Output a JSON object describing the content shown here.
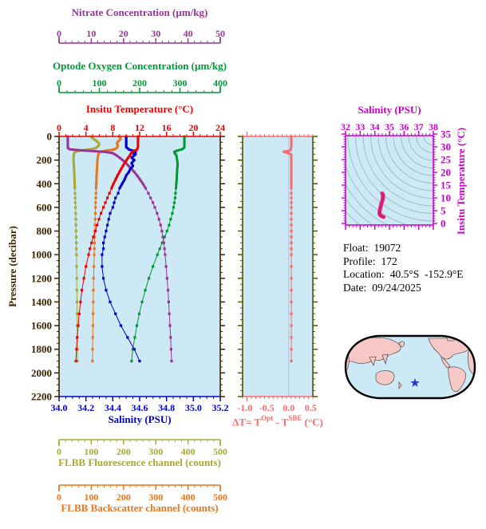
{
  "info_panel": {
    "lines": [
      {
        "label": "Float:",
        "value": "19072"
      },
      {
        "label": "Profile:",
        "value": "172"
      },
      {
        "label": "Location:",
        "value": "40.5°S  -152.9°E"
      },
      {
        "label": "Date:",
        "value": "09/24/2025"
      }
    ]
  },
  "delta_t_title": {
    "p1": "ΔT= T",
    "sup1": "Opt",
    "p2": " - T",
    "sup2": "SBE",
    "p3": " (°C)"
  },
  "map": {
    "type": "world-map-pacific-centered",
    "ocean_color": "#CDE9F5",
    "land_color": "#F6C8C6",
    "outline_color": "#000000",
    "marker": {
      "symbol": "star",
      "color": "#2233CC",
      "meaning": "float location"
    }
  },
  "chart_data": [
    {
      "id": "profile-plot",
      "type": "line",
      "plot_bg": "#CDE9F5",
      "y_axis": {
        "label": "Pressure (decibar)",
        "range": [
          0,
          2200
        ],
        "tick_step": 200,
        "minor_step": 50,
        "ticks": [
          0,
          200,
          400,
          600,
          800,
          1000,
          1200,
          1400,
          1600,
          1800,
          2000,
          2200
        ],
        "tick_labels": [
          "0",
          "200",
          "400",
          "600",
          "800",
          "1000",
          "1200",
          "1400",
          "1600",
          "1800",
          "2000",
          "2200"
        ],
        "color": "#3A2300"
      },
      "x_axes": [
        {
          "id": "nitrate",
          "title": "Nitrate Concentration (µm/kg)",
          "range": [
            0,
            50
          ],
          "ticks": [
            0,
            10,
            20,
            30,
            40,
            50
          ],
          "tick_labels": [
            "0",
            "10",
            "20",
            "30",
            "40",
            "50"
          ],
          "minor_step": 2,
          "color": "#993399"
        },
        {
          "id": "oxygen",
          "title": "Optode Oxygen Concentration (µm/kg)",
          "range": [
            0,
            400
          ],
          "ticks": [
            0,
            100,
            200,
            300,
            400
          ],
          "tick_labels": [
            "0",
            "100",
            "200",
            "300",
            "400"
          ],
          "minor_step": 20,
          "color": "#009933"
        },
        {
          "id": "temperature",
          "title": "Insitu Temperature (°C)",
          "range": [
            0,
            24
          ],
          "ticks": [
            0,
            4,
            8,
            12,
            16,
            20,
            24
          ],
          "tick_labels": [
            "0",
            "4",
            "8",
            "12",
            "16",
            "20",
            "24"
          ],
          "minor_step": 1,
          "color": "#EE0000"
        },
        {
          "id": "salinity",
          "title": "Salinity (PSU)",
          "range": [
            34.0,
            35.2
          ],
          "ticks": [
            34.0,
            34.2,
            34.4,
            34.6,
            34.8,
            35.0,
            35.2
          ],
          "tick_labels": [
            "34.0",
            "34.2",
            "34.4",
            "34.6",
            "34.8",
            "35.0",
            "35.2"
          ],
          "minor_step": 0.05,
          "color": "#0000CC"
        },
        {
          "id": "fluorescence",
          "title": "FLBB Fluorescence channel (counts)",
          "range": [
            0,
            500
          ],
          "ticks": [
            0,
            100,
            200,
            300,
            400,
            500
          ],
          "tick_labels": [
            "0",
            "100",
            "200",
            "300",
            "400",
            "500"
          ],
          "minor_step": 20,
          "color": "#A8A832"
        },
        {
          "id": "backscatter",
          "title": "FLBB Backscatter channel (counts)",
          "range": [
            0,
            500
          ],
          "ticks": [
            0,
            100,
            200,
            300,
            400,
            500
          ],
          "tick_labels": [
            "0",
            "100",
            "200",
            "300",
            "400",
            "500"
          ],
          "minor_step": 20,
          "color": "#E8761E"
        }
      ],
      "pressure_db": [
        0,
        10,
        20,
        30,
        40,
        50,
        60,
        70,
        80,
        90,
        100,
        110,
        120,
        130,
        140,
        150,
        160,
        180,
        200,
        225,
        250,
        275,
        300,
        330,
        360,
        400,
        440,
        480,
        520,
        560,
        600,
        650,
        700,
        750,
        800,
        850,
        900,
        950,
        1000,
        1100,
        1200,
        1300,
        1400,
        1500,
        1600,
        1700,
        1800,
        1900
      ],
      "series": [
        {
          "id": "fluorescence",
          "name": "FLBB Fluorescence channel (counts)",
          "axis": "fluorescence",
          "color": "#A8A832",
          "values": [
            99,
            102,
            107,
            112,
            117,
            121,
            124,
            124,
            122,
            118,
            112,
            95,
            65,
            50,
            47,
            46,
            45.5,
            45,
            45,
            45.5,
            46,
            46.5,
            47,
            47.5,
            48,
            48.5,
            49,
            49.5,
            50,
            50.5,
            51,
            51.5,
            52,
            52.3,
            52.6,
            53,
            53.3,
            53.6,
            54,
            54.5,
            55,
            55.3,
            55.6,
            56,
            56.2,
            56.5,
            56.8,
            57
          ]
        },
        {
          "id": "backscatter",
          "name": "FLBB Backscatter channel (counts)",
          "axis": "backscatter",
          "color": "#E8761E",
          "values": [
            186,
            189,
            191,
            188,
            184,
            181,
            180,
            181,
            182,
            181,
            179,
            170,
            145,
            128,
            124,
            122,
            121,
            120,
            119,
            118.5,
            118,
            117.5,
            117,
            116.5,
            116,
            115.5,
            115,
            114.5,
            114,
            113.5,
            113,
            112.5,
            112,
            111.5,
            111,
            110.5,
            110,
            109.5,
            109,
            108,
            107,
            106.5,
            106,
            105.5,
            105,
            104.5,
            104,
            103.5
          ]
        },
        {
          "id": "oxygen",
          "name": "Optode Oxygen Concentration (µm/kg)",
          "axis": "oxygen",
          "color": "#009933",
          "values": [
            311,
            311,
            311,
            311,
            311,
            311,
            311,
            311,
            311,
            311,
            309,
            304,
            293,
            286,
            287,
            289,
            291,
            292,
            293,
            294,
            294,
            293,
            293,
            292,
            292,
            291,
            290,
            289,
            288,
            286,
            284,
            281,
            277,
            273,
            268,
            262,
            256,
            250,
            244,
            233,
            223,
            214,
            206,
            199,
            193,
            188,
            183,
            180
          ]
        },
        {
          "id": "nitrate",
          "name": "Nitrate Concentration (µm/kg)",
          "axis": "nitrate",
          "color": "#993399",
          "values": [
            2.7,
            2.7,
            2.7,
            2.7,
            2.7,
            2.7,
            2.7,
            2.7,
            2.7,
            2.7,
            2.8,
            3.5,
            8.0,
            14.0,
            16.5,
            17.2,
            17.8,
            18.8,
            19.7,
            20.7,
            21.6,
            22.5,
            23.3,
            24.2,
            25.0,
            26.0,
            26.9,
            27.7,
            28.4,
            29.1,
            29.7,
            30.4,
            31.0,
            31.5,
            31.9,
            32.2,
            32.5,
            32.7,
            32.9,
            33.2,
            33.5,
            33.8,
            34.0,
            34.2,
            34.4,
            34.6,
            34.75,
            34.9
          ]
        },
        {
          "id": "salinity",
          "name": "Salinity (PSU)",
          "axis": "salinity",
          "color": "#0000CC",
          "values": [
            34.5,
            34.5,
            34.5,
            34.5,
            34.5,
            34.5,
            34.5,
            34.5,
            34.5,
            34.5,
            34.51,
            34.52,
            34.55,
            34.57,
            34.55,
            34.57,
            34.56,
            34.54,
            34.56,
            34.54,
            34.55,
            34.53,
            34.52,
            34.5,
            34.49,
            34.47,
            34.45,
            34.44,
            34.42,
            34.41,
            34.4,
            34.38,
            34.37,
            34.36,
            34.35,
            34.34,
            34.33,
            34.33,
            34.32,
            34.32,
            34.33,
            34.35,
            34.38,
            34.42,
            34.46,
            34.51,
            34.56,
            34.6
          ]
        },
        {
          "id": "temperature",
          "name": "Insitu Temperature (°C)",
          "axis": "temperature",
          "color": "#EE0000",
          "values": [
            11.75,
            11.75,
            11.75,
            11.75,
            11.75,
            11.75,
            11.75,
            11.75,
            11.75,
            11.75,
            11.7,
            11.6,
            11.3,
            10.9,
            10.75,
            10.65,
            10.55,
            10.3,
            10.05,
            9.75,
            9.5,
            9.25,
            9.0,
            8.7,
            8.45,
            8.1,
            7.8,
            7.5,
            7.2,
            6.9,
            6.6,
            6.25,
            5.95,
            5.65,
            5.4,
            5.1,
            4.85,
            4.6,
            4.4,
            4.0,
            3.7,
            3.4,
            3.2,
            3.0,
            2.85,
            2.7,
            2.6,
            2.5
          ]
        }
      ]
    },
    {
      "id": "delta-t-plot",
      "type": "line",
      "plot_bg": "#CDE9F5",
      "x_axis": {
        "title": "ΔT= TOpt - TSBE (°C)",
        "range": [
          -1.05,
          0.55
        ],
        "ticks": [
          -1.0,
          -0.5,
          0.0,
          0.5
        ],
        "tick_labels": [
          "-1.0",
          "-0.5",
          "0.0",
          "0.5"
        ],
        "minor_step": 0.1,
        "color": "#FA6B6B"
      },
      "y_axis": {
        "label": "Pressure (decibar, unlabeled)",
        "range": [
          0,
          2200
        ],
        "tick_step": 200,
        "minor_step": 50,
        "color": "#4D5400"
      },
      "series_color": "#FA6B6B",
      "zero_line_color": "#A9C6D2",
      "values": [
        0.06,
        0.06,
        0.06,
        0.06,
        0.06,
        0.06,
        0.06,
        0.06,
        0.06,
        0.06,
        0.05,
        0.05,
        0.02,
        -0.11,
        -0.02,
        0.05,
        0.06,
        0.06,
        0.06,
        0.06,
        0.06,
        0.06,
        0.06,
        0.06,
        0.06,
        0.06,
        0.06,
        0.06,
        0.06,
        0.06,
        0.06,
        0.06,
        0.06,
        0.06,
        0.06,
        0.06,
        0.06,
        0.06,
        0.06,
        0.06,
        0.06,
        0.06,
        0.06,
        0.06,
        0.06,
        0.06,
        0.06,
        0.06
      ]
    },
    {
      "id": "ts-diagram",
      "type": "scatter",
      "plot_bg": "#CDE9F5",
      "x_axis": {
        "title": "Salinity (PSU)",
        "range": [
          32,
          38
        ],
        "ticks": [
          32,
          33,
          34,
          35,
          36,
          37,
          38
        ],
        "tick_labels": [
          "32",
          "33",
          "34",
          "35",
          "36",
          "37",
          "38"
        ],
        "minor_step": 0.25,
        "color": "#CC00CC"
      },
      "y_axis": {
        "title": "Insitu Temperature (°C)",
        "range": [
          0,
          35
        ],
        "ticks": [
          0,
          5,
          10,
          15,
          20,
          25,
          30,
          35
        ],
        "tick_labels": [
          "0",
          "5",
          "10",
          "15",
          "20",
          "25",
          "30",
          "35"
        ],
        "minor_step": 1,
        "color": "#CC00CC"
      },
      "note": "temperature-vs-salinity curve built from the salinity and temperature profile series of profile-plot",
      "curve_colors": {
        "outer": "#EE22AA",
        "inner": "#CC2244"
      },
      "isopycnal_color": "#99B7C2"
    }
  ]
}
